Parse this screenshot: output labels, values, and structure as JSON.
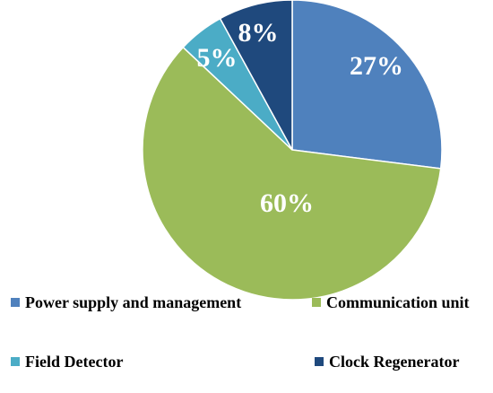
{
  "chart_data": {
    "type": "pie",
    "slices": [
      {
        "label": "Power supply and management",
        "value": 27,
        "display": "27%",
        "color": "#4f81bd"
      },
      {
        "label": "Communication unit",
        "value": 60,
        "display": "60%",
        "color": "#9bbb59"
      },
      {
        "label": "Field Detector",
        "value": 5,
        "display": "5%",
        "color": "#4bacc6"
      },
      {
        "label": "Clock Regenerator",
        "value": 8,
        "display": "8%",
        "color": "#1f497d"
      }
    ],
    "start_angle": "12 o'clock",
    "direction": "clockwise",
    "legend_position": "bottom"
  }
}
